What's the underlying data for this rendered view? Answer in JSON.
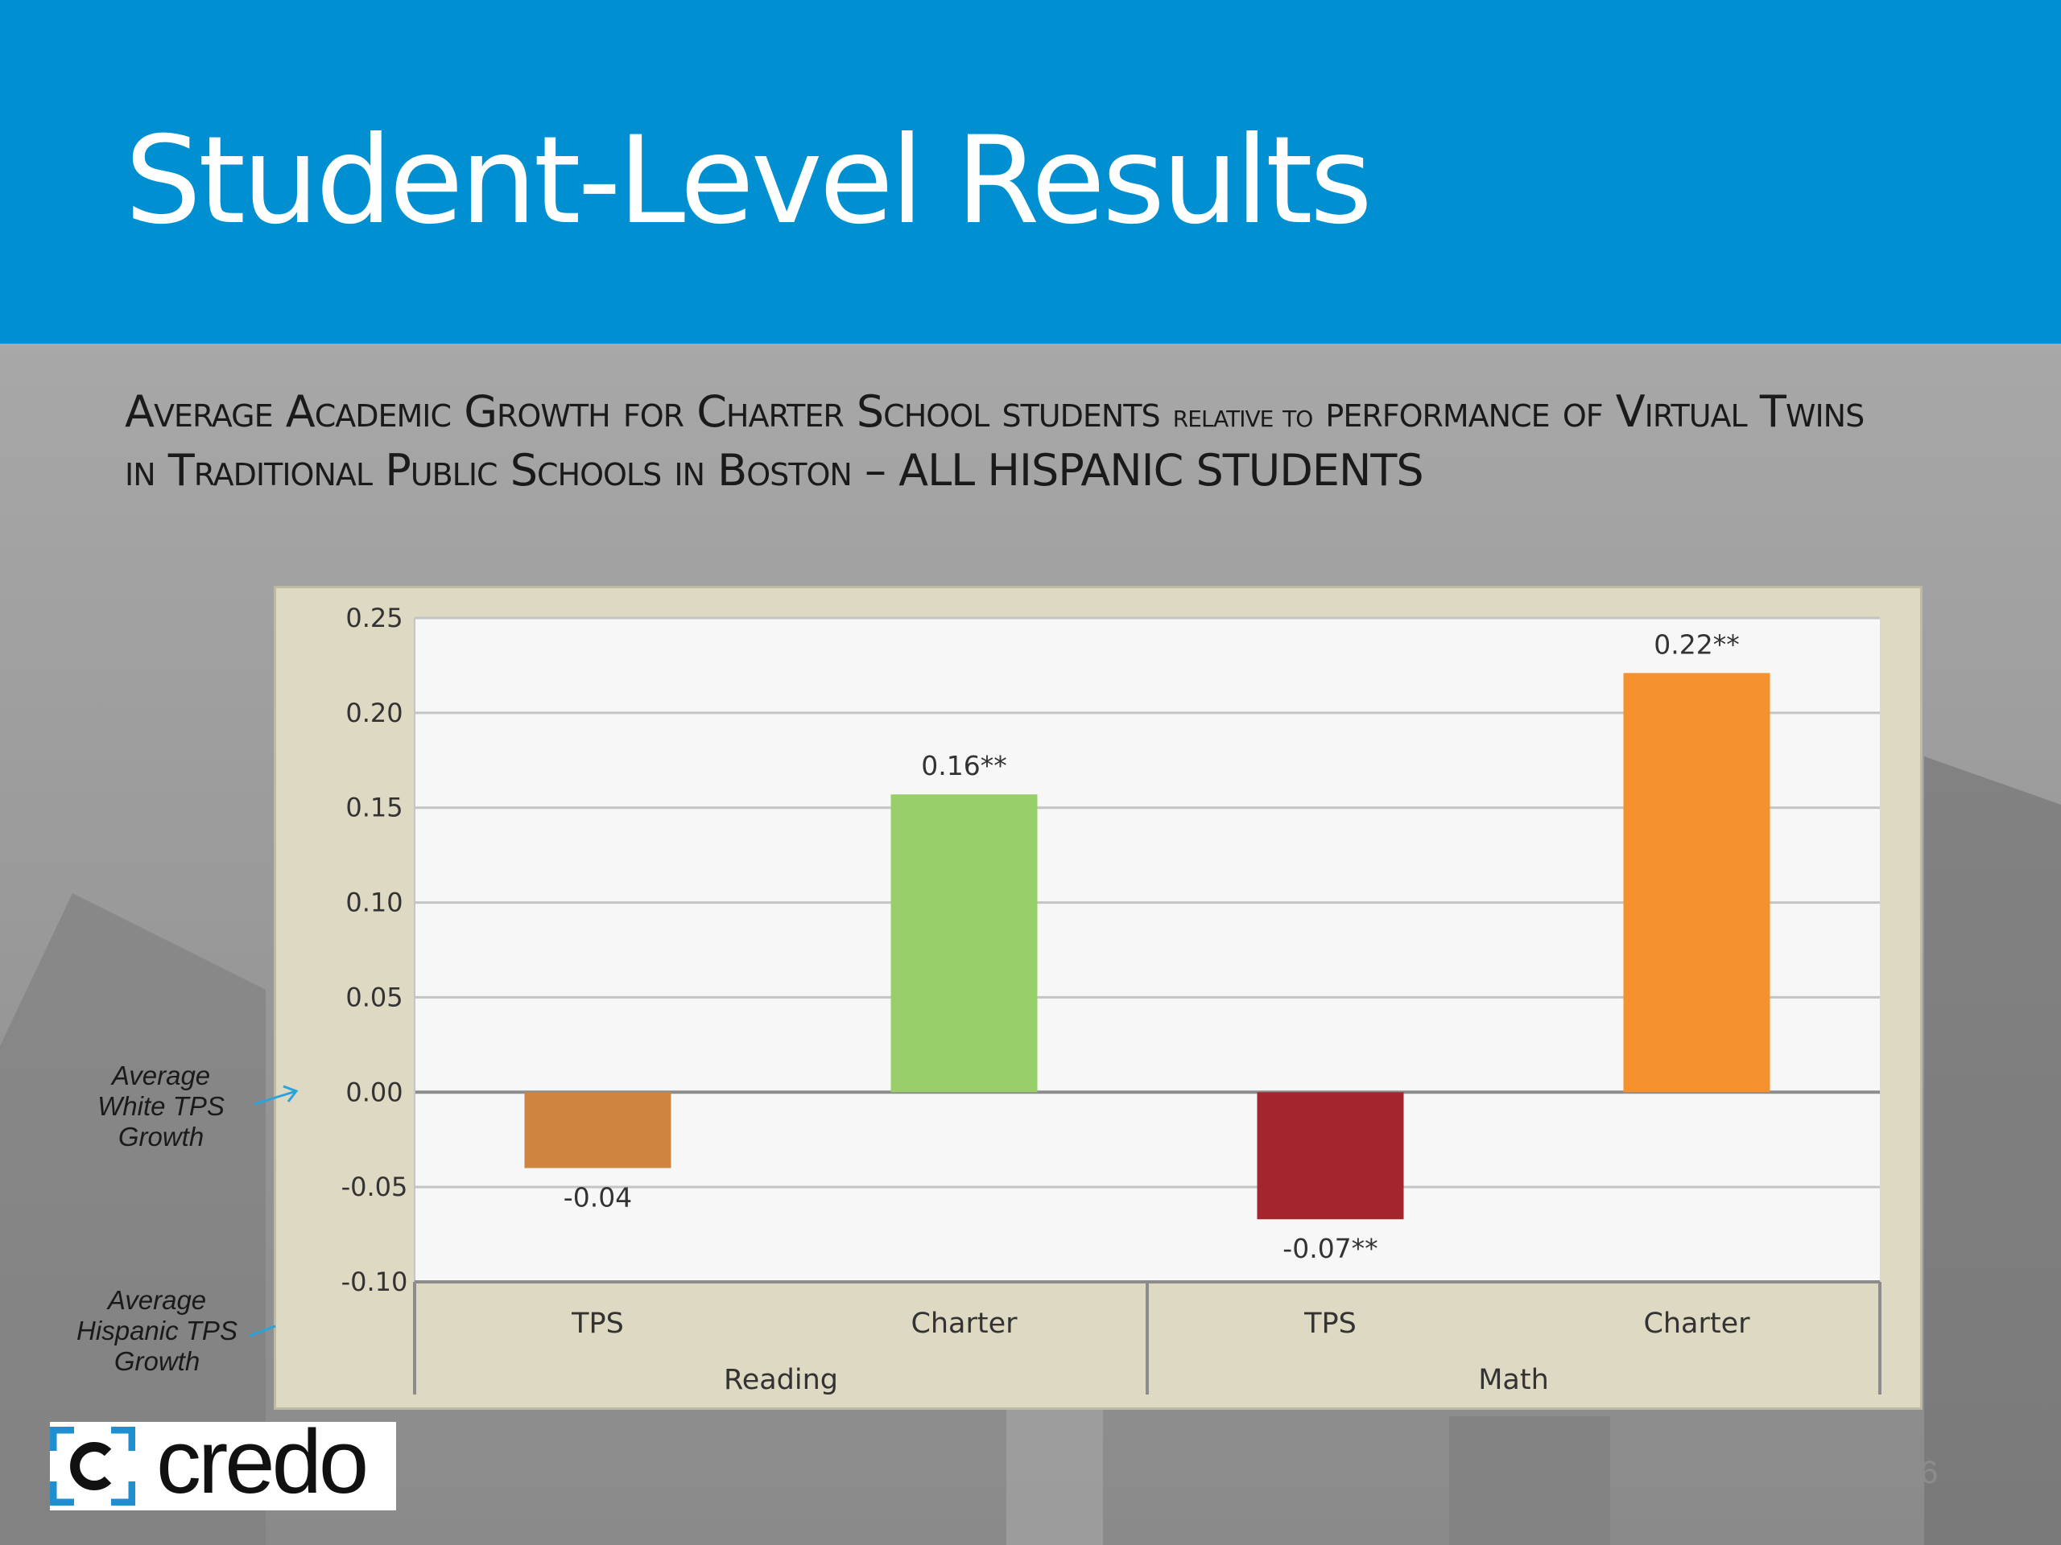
{
  "slide": {
    "title": "Student-Level Results",
    "subtitle_parts": [
      {
        "text": "Average Academic Growth for Charter School students ",
        "small": false
      },
      {
        "text": "relative to",
        "small": true
      },
      {
        "text": " performance of Virtual Twins in Traditional Public Schools in Boston – ALL HISPANIC STUDENTS",
        "small": false
      }
    ],
    "annotation_white": "Average White TPS Growth",
    "annotation_hispanic": "Average Hispanic TPS Growth",
    "logo_text": "credo",
    "page_number": "16",
    "colors": {
      "header": "#0090d1",
      "chart_frame": "#ddd9c3",
      "plot_bg": "#f7f7f7",
      "annotation_arrow": "#2aa3dc"
    }
  },
  "chart_data": {
    "type": "bar",
    "categories": [
      {
        "label": "TPS",
        "group": "Reading"
      },
      {
        "label": "Charter",
        "group": "Reading"
      },
      {
        "label": "TPS",
        "group": "Math"
      },
      {
        "label": "Charter",
        "group": "Math"
      }
    ],
    "groups": [
      "Reading",
      "Math"
    ],
    "values": [
      -0.04,
      0.157,
      -0.067,
      0.221
    ],
    "data_labels": [
      "-0.04",
      "0.16**",
      "-0.07**",
      "0.22**"
    ],
    "bar_colors": [
      "#cd853f",
      "#98cf6a",
      "#a4262c",
      "#f5922f"
    ],
    "yticks": [
      "0.25",
      "0.20",
      "0.15",
      "0.10",
      "0.05",
      "0.00",
      "-0.05",
      "-0.10"
    ],
    "ylim": [
      -0.1,
      0.25
    ],
    "grid": true,
    "legend": "none"
  }
}
